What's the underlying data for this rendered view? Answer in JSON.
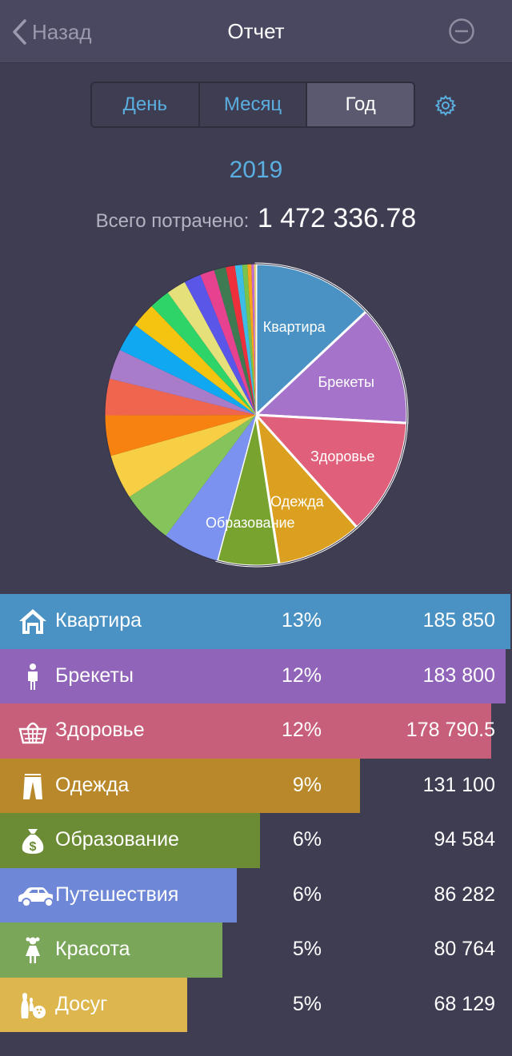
{
  "nav": {
    "back_label": "Назад",
    "title": "Отчет"
  },
  "period": {
    "options": [
      "День",
      "Месяц",
      "Год"
    ],
    "selected": "Год"
  },
  "year": "2019",
  "total": {
    "label": "Всего потрачено:",
    "value": "1 472 336.78"
  },
  "chart_data": {
    "type": "pie",
    "slices": [
      {
        "label": "Квартира",
        "value": 185850,
        "color": "#4a92c4",
        "show_label": true
      },
      {
        "label": "Брекеты",
        "value": 183800,
        "color": "#a573c9",
        "show_label": true
      },
      {
        "label": "Здоровье",
        "value": 178790.5,
        "color": "#e0607c",
        "show_label": true
      },
      {
        "label": "Одежда",
        "value": 131100,
        "color": "#dba01f",
        "show_label": true
      },
      {
        "label": "Образование",
        "value": 94584,
        "color": "#78a32f",
        "show_label": true
      },
      {
        "label": "",
        "value": 86282,
        "color": "#7b92f0",
        "show_label": false
      },
      {
        "label": "",
        "value": 80764,
        "color": "#85c45a",
        "show_label": false
      },
      {
        "label": "",
        "value": 68129,
        "color": "#f7cf45",
        "show_label": false
      },
      {
        "label": "",
        "value": 62000,
        "color": "#f7820f",
        "show_label": false
      },
      {
        "label": "",
        "value": 56000,
        "color": "#f0654e",
        "show_label": false
      },
      {
        "label": "",
        "value": 46000,
        "color": "#a87cc9",
        "show_label": false
      },
      {
        "label": "",
        "value": 44000,
        "color": "#11a8f2",
        "show_label": false
      },
      {
        "label": "",
        "value": 38000,
        "color": "#f5c411",
        "show_label": false
      },
      {
        "label": "",
        "value": 32000,
        "color": "#2fd469",
        "show_label": false
      },
      {
        "label": "",
        "value": 30000,
        "color": "#e6e07a",
        "show_label": false
      },
      {
        "label": "",
        "value": 26000,
        "color": "#5a56e8",
        "show_label": false
      },
      {
        "label": "",
        "value": 22000,
        "color": "#e6428f",
        "show_label": false
      },
      {
        "label": "",
        "value": 18000,
        "color": "#3e7a52",
        "show_label": false
      },
      {
        "label": "",
        "value": 14000,
        "color": "#ee2f3c",
        "show_label": false
      },
      {
        "label": "",
        "value": 11000,
        "color": "#3dbde6",
        "show_label": false
      },
      {
        "label": "",
        "value": 8000,
        "color": "#79c24b",
        "show_label": false
      },
      {
        "label": "",
        "value": 6000,
        "color": "#f7a31c",
        "show_label": false
      },
      {
        "label": "",
        "value": 4000,
        "color": "#c66bd0",
        "show_label": false
      },
      {
        "label": "",
        "value": 3000,
        "color": "#e7d37a",
        "show_label": false
      }
    ]
  },
  "categories": [
    {
      "name": "Квартира",
      "percent": "13%",
      "amount": "185 850",
      "share": 1.0,
      "color": "#4a92c4",
      "icon": "house-icon"
    },
    {
      "name": "Брекеты",
      "percent": "12%",
      "amount": "183 800",
      "share": 0.99,
      "color": "#9064b8",
      "icon": "person-icon"
    },
    {
      "name": "Здоровье",
      "percent": "12%",
      "amount": "178 790.5",
      "share": 0.962,
      "color": "#c75f7a",
      "icon": "basket-icon"
    },
    {
      "name": "Одежда",
      "percent": "9%",
      "amount": "131 100",
      "share": 0.705,
      "color": "#b8882a",
      "icon": "pants-icon"
    },
    {
      "name": "Образование",
      "percent": "6%",
      "amount": "94 584",
      "share": 0.509,
      "color": "#6b8b35",
      "icon": "moneybag-icon"
    },
    {
      "name": "Путешествия",
      "percent": "6%",
      "amount": "86 282",
      "share": 0.464,
      "color": "#6e87d6",
      "icon": "car-icon"
    },
    {
      "name": "Красота",
      "percent": "5%",
      "amount": "80 764",
      "share": 0.435,
      "color": "#7aa65a",
      "icon": "girl-icon"
    },
    {
      "name": "Досуг",
      "percent": "5%",
      "amount": "68 129",
      "share": 0.367,
      "color": "#ddb64e",
      "icon": "bowling-icon"
    }
  ]
}
